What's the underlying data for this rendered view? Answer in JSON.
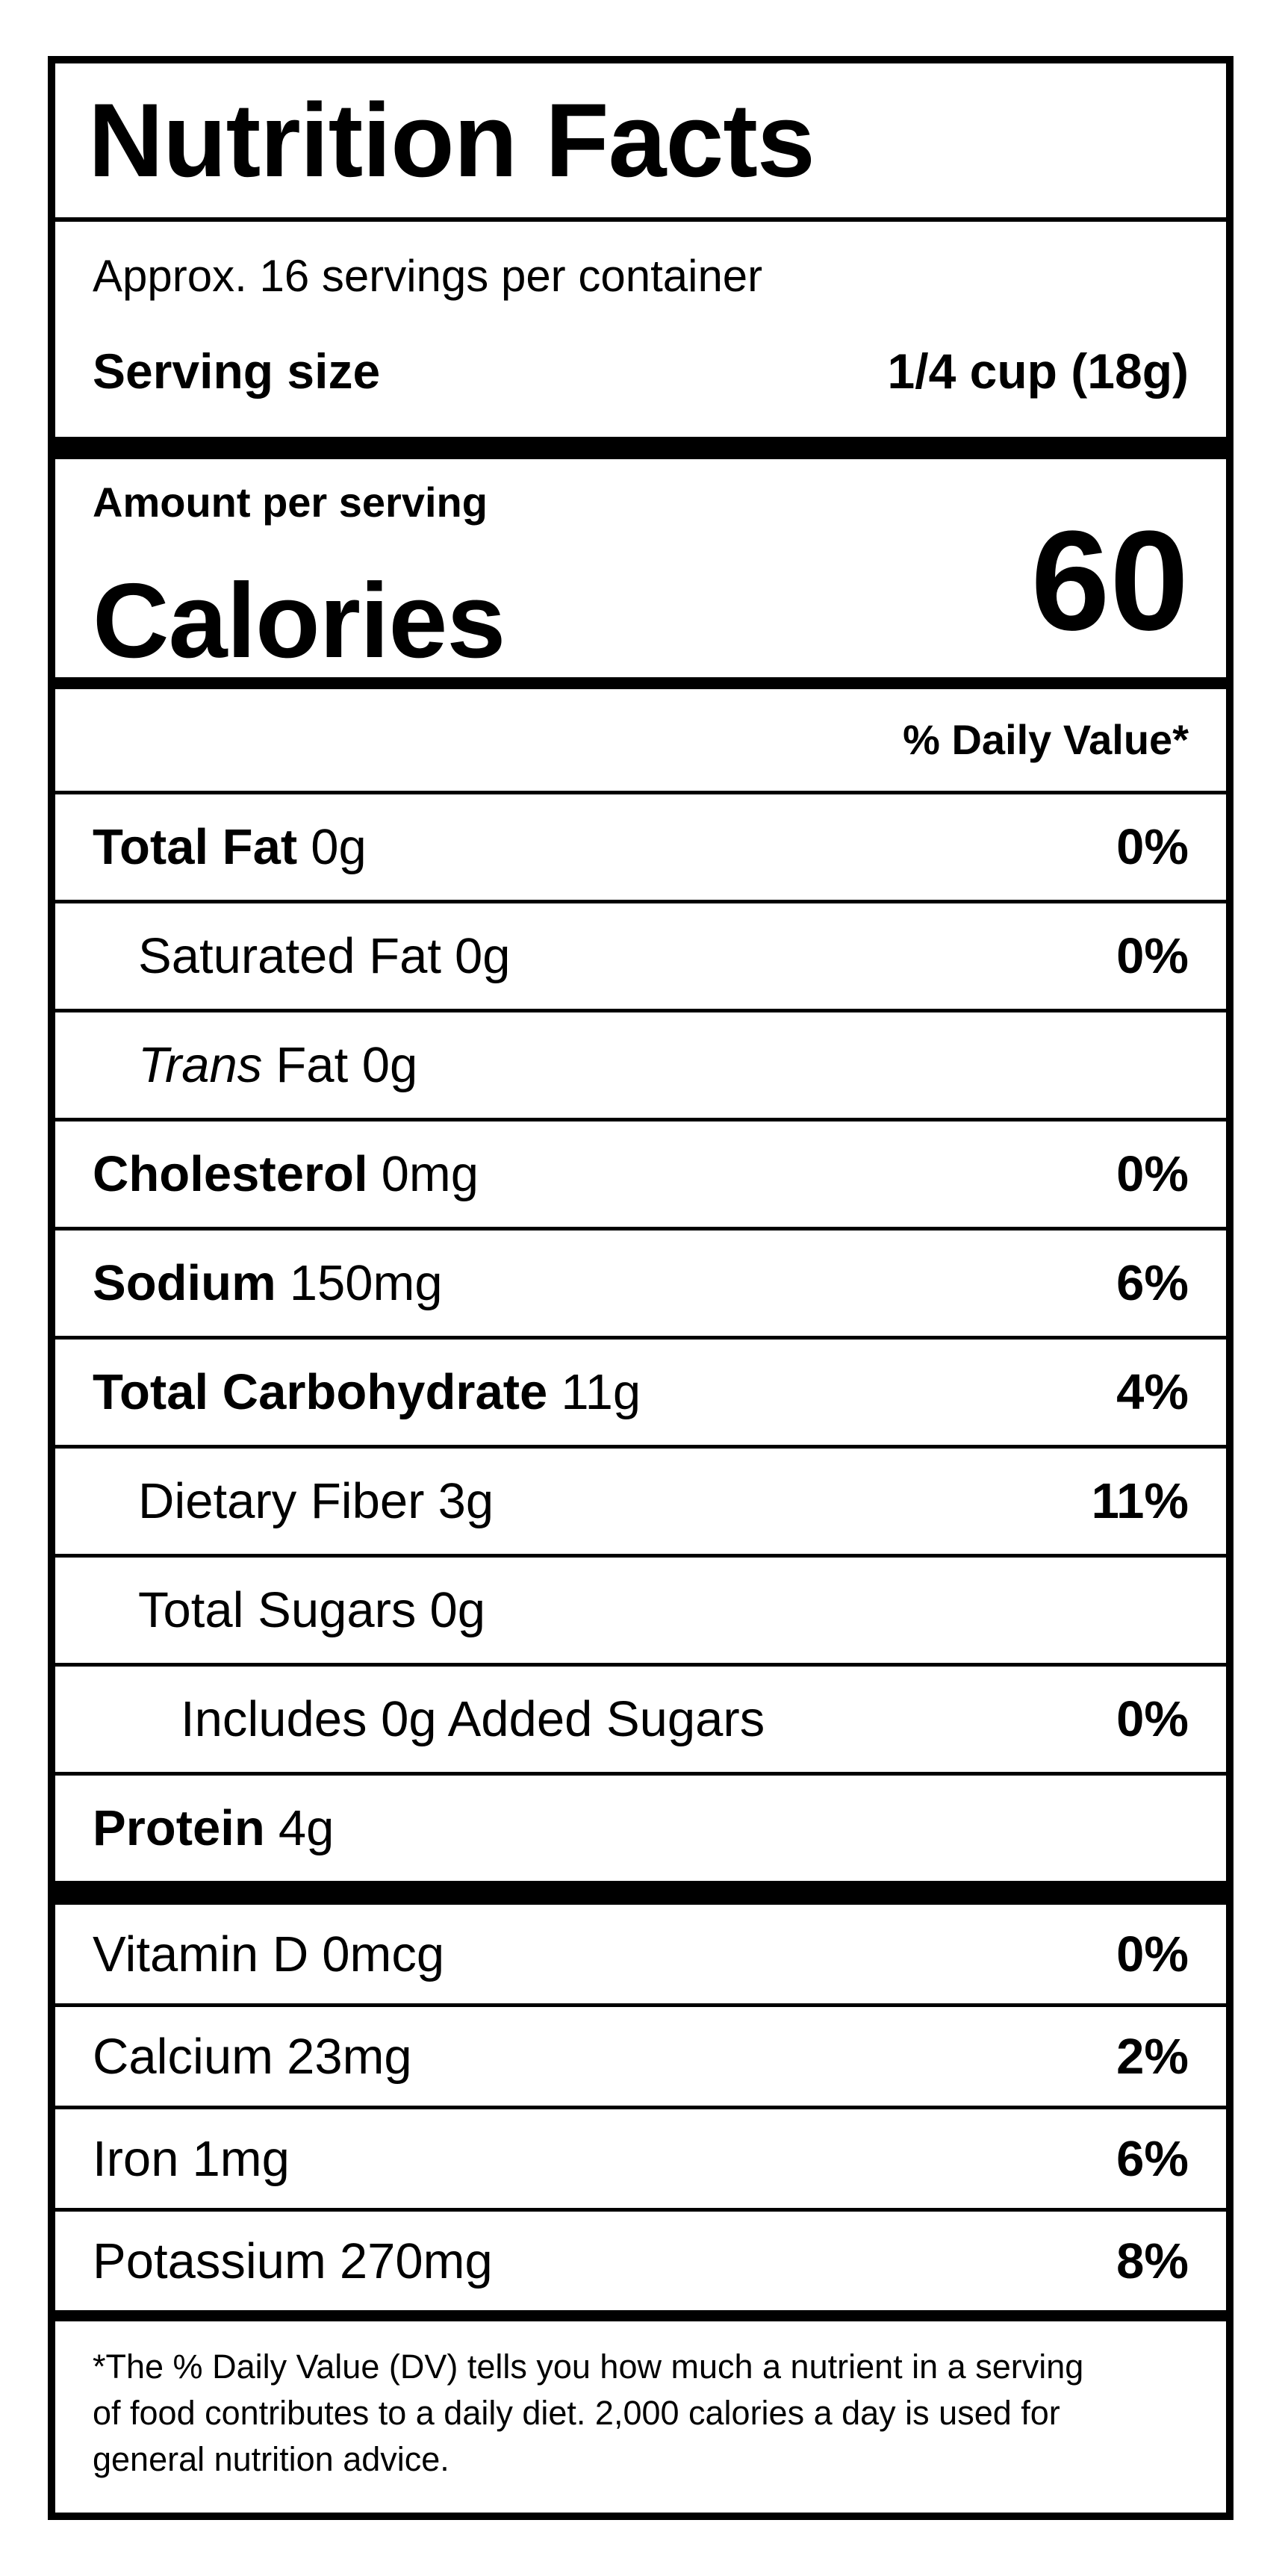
{
  "label": {
    "title": "Nutrition Facts",
    "servings_per_container": "Approx. 16 servings per container",
    "serving_size": {
      "label": "Serving size",
      "value": "1/4 cup (18g)"
    },
    "calories": {
      "context": "Amount per serving",
      "label": "Calories",
      "value": "60"
    },
    "daily_value_header": "% Daily Value*",
    "nutrients": [
      {
        "name": "Total Fat",
        "amount": "0g",
        "daily_value": "0%"
      },
      {
        "name": "Saturated Fat",
        "amount": "0g",
        "daily_value": "0%"
      },
      {
        "name": "Trans",
        "amount": "Fat 0g",
        "daily_value": ""
      },
      {
        "name": "Cholesterol",
        "amount": "0mg",
        "daily_value": "0%"
      },
      {
        "name": "Sodium",
        "amount": "150mg",
        "daily_value": "6%"
      },
      {
        "name": "Total Carbohydrate",
        "amount": "11g",
        "daily_value": "4%"
      },
      {
        "name": "Dietary Fiber",
        "amount": "3g",
        "daily_value": "11%"
      },
      {
        "name": "Total Sugars",
        "amount": "0g",
        "daily_value": ""
      },
      {
        "name": "Includes 0g Added Sugars",
        "amount": "",
        "daily_value": "0%"
      },
      {
        "name": "Protein",
        "amount": "4g",
        "daily_value": ""
      }
    ],
    "micronutrients": [
      {
        "name": "Vitamin D",
        "amount": "0mcg",
        "daily_value": "0%"
      },
      {
        "name": "Calcium",
        "amount": "23mg",
        "daily_value": "2%"
      },
      {
        "name": "Iron",
        "amount": "1mg",
        "daily_value": "6%"
      },
      {
        "name": "Potassium",
        "amount": "270mg",
        "daily_value": "8%"
      }
    ],
    "footnote_lines": [
      "*The % Daily Value (DV) tells you how much a nutrient in a serving",
      "of food contributes to a daily diet. 2,000 calories a day is used for",
      "general nutrition advice."
    ]
  }
}
